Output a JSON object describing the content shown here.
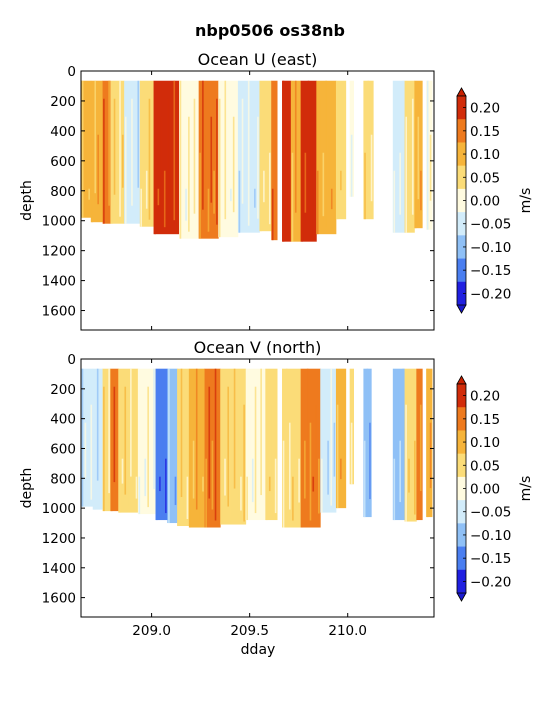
{
  "chart_data": {
    "suptitle": "nbp0506 os38nb",
    "xlabel": "dday",
    "x_ticks": [
      "209.0",
      "209.5",
      "210.0"
    ],
    "xlim": [
      208.64,
      210.44
    ],
    "panels": [
      {
        "type": "heatmap",
        "title": "Ocean U (east)",
        "ylabel": "depth",
        "y_ticks": [
          "0",
          "200",
          "400",
          "600",
          "800",
          "1000",
          "1200",
          "1400",
          "1600"
        ],
        "ylim": [
          1730,
          0
        ],
        "colorbar": {
          "label": "m/s",
          "tick_labels": [
            "0.20",
            "0.15",
            "0.10",
            "0.05",
            "0.00",
            "−0.05",
            "−0.10",
            "−0.15",
            "−0.20"
          ],
          "range": [
            -0.2,
            0.2
          ],
          "extend": "both"
        },
        "bands": [
          {
            "x0": 208.64,
            "x1": 208.69,
            "v": 0.09,
            "bottom": 980
          },
          {
            "x0": 208.69,
            "x1": 208.75,
            "v": 0.12,
            "bottom": 1010
          },
          {
            "x0": 208.75,
            "x1": 208.79,
            "v": 0.15,
            "bottom": 1020
          },
          {
            "x0": 208.79,
            "x1": 208.86,
            "v": 0.05,
            "bottom": 1020
          },
          {
            "x0": 208.86,
            "x1": 208.94,
            "v": -0.03,
            "bottom": 1020
          },
          {
            "x0": 208.94,
            "x1": 209.01,
            "v": 0.04,
            "bottom": 1040
          },
          {
            "x0": 209.01,
            "x1": 209.14,
            "v": 0.19,
            "bottom": 1090
          },
          {
            "x0": 209.14,
            "x1": 209.24,
            "v": 0.02,
            "bottom": 1120
          },
          {
            "x0": 209.24,
            "x1": 209.34,
            "v": 0.15,
            "bottom": 1120
          },
          {
            "x0": 209.34,
            "x1": 209.44,
            "v": 0.02,
            "bottom": 1110
          },
          {
            "x0": 209.44,
            "x1": 209.55,
            "v": -0.04,
            "bottom": 1080
          },
          {
            "x0": 209.55,
            "x1": 209.61,
            "v": 0.03,
            "bottom": 1070
          },
          {
            "x0": 209.61,
            "x1": 209.64,
            "v": 0.16,
            "bottom": 1130
          },
          {
            "x0": 209.64,
            "x1": 209.665,
            "v": null,
            "bottom": 0
          },
          {
            "x0": 209.665,
            "x1": 209.71,
            "v": 0.2,
            "bottom": 1140
          },
          {
            "x0": 209.71,
            "x1": 209.76,
            "v": 0.12,
            "bottom": 1140
          },
          {
            "x0": 209.76,
            "x1": 209.84,
            "v": 0.2,
            "bottom": 1140
          },
          {
            "x0": 209.84,
            "x1": 209.94,
            "v": 0.1,
            "bottom": 1090
          },
          {
            "x0": 209.94,
            "x1": 209.99,
            "v": 0.06,
            "bottom": 990
          },
          {
            "x0": 209.99,
            "x1": 210.01,
            "v": null,
            "bottom": 0
          },
          {
            "x0": 210.01,
            "x1": 210.03,
            "v": 0.01,
            "bottom": 840
          },
          {
            "x0": 210.03,
            "x1": 210.08,
            "v": null,
            "bottom": 0
          },
          {
            "x0": 210.08,
            "x1": 210.13,
            "v": 0.05,
            "bottom": 990
          },
          {
            "x0": 210.13,
            "x1": 210.23,
            "v": null,
            "bottom": 0
          },
          {
            "x0": 210.23,
            "x1": 210.29,
            "v": -0.03,
            "bottom": 1080
          },
          {
            "x0": 210.29,
            "x1": 210.34,
            "v": 0.03,
            "bottom": 1080
          },
          {
            "x0": 210.34,
            "x1": 210.38,
            "v": 0.11,
            "bottom": 1050
          },
          {
            "x0": 210.38,
            "x1": 210.4,
            "v": null,
            "bottom": 0
          },
          {
            "x0": 210.4,
            "x1": 210.43,
            "v": -0.02,
            "bottom": 1060
          }
        ]
      },
      {
        "type": "heatmap",
        "title": "Ocean V (north)",
        "ylabel": "depth",
        "y_ticks": [
          "0",
          "200",
          "400",
          "600",
          "800",
          "1000",
          "1200",
          "1400",
          "1600"
        ],
        "ylim": [
          1730,
          0
        ],
        "colorbar": {
          "label": "m/s",
          "tick_labels": [
            "0.20",
            "0.15",
            "0.10",
            "0.05",
            "0.00",
            "−0.05",
            "−0.10",
            "−0.15",
            "−0.20"
          ],
          "range": [
            -0.2,
            0.2
          ],
          "extend": "both"
        },
        "bands": [
          {
            "x0": 208.64,
            "x1": 208.7,
            "v": -0.04,
            "bottom": 990
          },
          {
            "x0": 208.7,
            "x1": 208.75,
            "v": -0.07,
            "bottom": 1010
          },
          {
            "x0": 208.75,
            "x1": 208.79,
            "v": 0.04,
            "bottom": 1020
          },
          {
            "x0": 208.79,
            "x1": 208.83,
            "v": 0.17,
            "bottom": 1020
          },
          {
            "x0": 208.83,
            "x1": 208.93,
            "v": 0.04,
            "bottom": 1030
          },
          {
            "x0": 208.93,
            "x1": 209.02,
            "v": -0.02,
            "bottom": 1040
          },
          {
            "x0": 209.02,
            "x1": 209.08,
            "v": -0.16,
            "bottom": 1080
          },
          {
            "x0": 209.08,
            "x1": 209.13,
            "v": -0.1,
            "bottom": 1100
          },
          {
            "x0": 209.13,
            "x1": 209.19,
            "v": 0.05,
            "bottom": 1120
          },
          {
            "x0": 209.19,
            "x1": 209.27,
            "v": 0.08,
            "bottom": 1130
          },
          {
            "x0": 209.27,
            "x1": 209.35,
            "v": 0.15,
            "bottom": 1130
          },
          {
            "x0": 209.35,
            "x1": 209.48,
            "v": 0.06,
            "bottom": 1110
          },
          {
            "x0": 209.48,
            "x1": 209.58,
            "v": 0.02,
            "bottom": 1080
          },
          {
            "x0": 209.58,
            "x1": 209.64,
            "v": 0.05,
            "bottom": 1080
          },
          {
            "x0": 209.64,
            "x1": 209.665,
            "v": null,
            "bottom": 0
          },
          {
            "x0": 209.665,
            "x1": 209.76,
            "v": 0.04,
            "bottom": 1130
          },
          {
            "x0": 209.76,
            "x1": 209.86,
            "v": 0.14,
            "bottom": 1130
          },
          {
            "x0": 209.86,
            "x1": 209.94,
            "v": -0.05,
            "bottom": 1030
          },
          {
            "x0": 209.94,
            "x1": 209.99,
            "v": 0.08,
            "bottom": 1000
          },
          {
            "x0": 209.99,
            "x1": 210.01,
            "v": null,
            "bottom": 0
          },
          {
            "x0": 210.01,
            "x1": 210.03,
            "v": 0.04,
            "bottom": 840
          },
          {
            "x0": 210.03,
            "x1": 210.08,
            "v": null,
            "bottom": 0
          },
          {
            "x0": 210.08,
            "x1": 210.12,
            "v": -0.12,
            "bottom": 1060
          },
          {
            "x0": 210.12,
            "x1": 210.23,
            "v": null,
            "bottom": 0
          },
          {
            "x0": 210.23,
            "x1": 210.29,
            "v": -0.09,
            "bottom": 1080
          },
          {
            "x0": 210.29,
            "x1": 210.35,
            "v": 0.05,
            "bottom": 1090
          },
          {
            "x0": 210.35,
            "x1": 210.38,
            "v": 0.14,
            "bottom": 1080
          },
          {
            "x0": 210.38,
            "x1": 210.4,
            "v": null,
            "bottom": 0
          },
          {
            "x0": 210.4,
            "x1": 210.43,
            "v": 0.1,
            "bottom": 1060
          }
        ]
      }
    ]
  },
  "colors": {
    "levels": [
      "#2020e0",
      "#4a7ef0",
      "#8fc0f6",
      "#d2ecfa",
      "#fffbe0",
      "#fbdc78",
      "#f6b43a",
      "#ee7a1e",
      "#d12c0a"
    ],
    "under": "#1a1ad0",
    "over": "#c82000",
    "frame": "#000000"
  }
}
